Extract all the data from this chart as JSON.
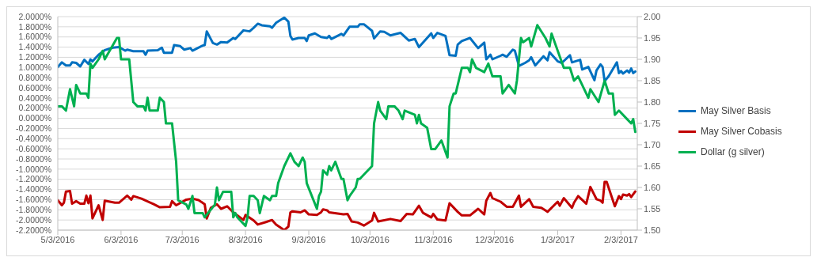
{
  "chart_data": {
    "type": "line",
    "grid": "y",
    "legend": "right",
    "xlim": [
      "2016-05-03",
      "2017-02-11"
    ],
    "xticks": [
      {
        "value": "2016-05-03",
        "label": "5/3/2016"
      },
      {
        "value": "2016-06-03",
        "label": "6/3/2016"
      },
      {
        "value": "2016-07-03",
        "label": "7/3/2016"
      },
      {
        "value": "2016-08-03",
        "label": "8/3/2016"
      },
      {
        "value": "2016-09-03",
        "label": "9/3/2016"
      },
      {
        "value": "2016-10-03",
        "label": "10/3/2016"
      },
      {
        "value": "2016-11-03",
        "label": "11/3/2016"
      },
      {
        "value": "2016-12-03",
        "label": "12/3/2016"
      },
      {
        "value": "2017-01-03",
        "label": "1/3/2017"
      },
      {
        "value": "2017-02-03",
        "label": "2/3/2017"
      }
    ],
    "ylim": [
      -2.2,
      2.0
    ],
    "yticks": [
      {
        "value": 2.0,
        "label": "2.0000%"
      },
      {
        "value": 1.8,
        "label": "1.8000%"
      },
      {
        "value": 1.6,
        "label": "1.6000%"
      },
      {
        "value": 1.4,
        "label": "1.4000%"
      },
      {
        "value": 1.2,
        "label": "1.2000%"
      },
      {
        "value": 1.0,
        "label": "1.0000%"
      },
      {
        "value": 0.8,
        "label": "0.8000%"
      },
      {
        "value": 0.6,
        "label": "0.6000%"
      },
      {
        "value": 0.4,
        "label": "0.4000%"
      },
      {
        "value": 0.2,
        "label": "0.2000%"
      },
      {
        "value": 0,
        "label": "0.0000%"
      },
      {
        "value": -0.2,
        "label": "-0.2000%"
      },
      {
        "value": -0.4,
        "label": "-0.4000%"
      },
      {
        "value": -0.6,
        "label": "-0.6000%"
      },
      {
        "value": -0.8,
        "label": "-0.8000%"
      },
      {
        "value": -1.0,
        "label": "-1.0000%"
      },
      {
        "value": -1.2,
        "label": "-1.2000%"
      },
      {
        "value": -1.4,
        "label": "-1.4000%"
      },
      {
        "value": -1.6,
        "label": "-1.6000%"
      },
      {
        "value": -1.8,
        "label": "-1.8000%"
      },
      {
        "value": -2.0,
        "label": "-2.0000%"
      },
      {
        "value": -2.2,
        "label": "-2.2000%"
      }
    ],
    "y2lim": [
      1.5,
      2.0
    ],
    "y2ticks": [
      {
        "value": 1.5,
        "label": "1.50"
      },
      {
        "value": 1.55,
        "label": "1.55"
      },
      {
        "value": 1.6,
        "label": "1.60"
      },
      {
        "value": 1.65,
        "label": "1.65"
      },
      {
        "value": 1.7,
        "label": "1.70"
      },
      {
        "value": 1.75,
        "label": "1.75"
      },
      {
        "value": 1.8,
        "label": "1.80"
      },
      {
        "value": 1.85,
        "label": "1.85"
      },
      {
        "value": 1.9,
        "label": "1.90"
      },
      {
        "value": 1.95,
        "label": "1.95"
      },
      {
        "value": 2.0,
        "label": "2.00"
      }
    ],
    "series": [
      {
        "name": "May Silver Basis",
        "color": "#0070c0",
        "x": [
          "2016-05-03",
          "2016-05-05",
          "2016-05-07",
          "2016-05-09",
          "2016-05-10",
          "2016-05-12",
          "2016-05-14",
          "2016-05-16",
          "2016-05-18",
          "2016-05-19",
          "2016-05-20",
          "2016-05-23",
          "2016-05-26",
          "2016-05-30",
          "2016-06-02",
          "2016-06-05",
          "2016-06-06",
          "2016-06-09",
          "2016-06-14",
          "2016-06-15",
          "2016-06-16",
          "2016-06-21",
          "2016-06-23",
          "2016-06-24",
          "2016-06-28",
          "2016-06-29",
          "2016-07-02",
          "2016-07-04",
          "2016-07-07",
          "2016-07-08",
          "2016-07-13",
          "2016-07-14",
          "2016-07-15",
          "2016-07-18",
          "2016-07-20",
          "2016-07-22",
          "2016-07-25",
          "2016-07-28",
          "2016-07-29",
          "2016-08-02",
          "2016-08-05",
          "2016-08-07",
          "2016-08-09",
          "2016-08-11",
          "2016-08-15",
          "2016-08-16",
          "2016-08-18",
          "2016-08-22",
          "2016-08-24",
          "2016-08-25",
          "2016-08-26",
          "2016-08-29",
          "2016-09-01",
          "2016-09-02",
          "2016-09-03",
          "2016-09-06",
          "2016-09-09",
          "2016-09-12",
          "2016-09-13",
          "2016-09-14",
          "2016-09-19",
          "2016-09-20",
          "2016-09-23",
          "2016-09-27",
          "2016-09-28",
          "2016-09-30",
          "2016-10-04",
          "2016-10-05",
          "2016-10-08",
          "2016-10-10",
          "2016-10-13",
          "2016-10-18",
          "2016-10-22",
          "2016-10-25",
          "2016-10-27",
          "2016-10-31",
          "2016-11-02",
          "2016-11-03",
          "2016-11-05",
          "2016-11-09",
          "2016-11-11",
          "2016-11-14",
          "2016-11-15",
          "2016-11-17",
          "2016-11-21",
          "2016-11-25",
          "2016-11-28",
          "2016-11-29",
          "2016-12-01",
          "2016-12-02",
          "2016-12-06",
          "2016-12-07",
          "2016-12-09",
          "2016-12-12",
          "2016-12-13",
          "2016-12-15",
          "2016-12-18",
          "2016-12-20",
          "2016-12-21",
          "2016-12-23",
          "2016-12-27",
          "2016-12-29",
          "2016-12-30",
          "2017-01-03",
          "2017-01-05",
          "2017-01-09",
          "2017-01-10",
          "2017-01-14",
          "2017-01-15",
          "2017-01-18",
          "2017-01-21",
          "2017-01-22",
          "2017-01-24",
          "2017-01-25",
          "2017-01-26",
          "2017-01-28",
          "2017-02-01",
          "2017-02-02",
          "2017-02-03",
          "2017-02-04",
          "2017-02-06",
          "2017-02-07",
          "2017-02-08",
          "2017-02-09",
          "2017-02-10"
        ],
        "values": [
          1.01,
          1.1,
          1.04,
          1.04,
          1.1,
          1.09,
          1.02,
          1.15,
          1.07,
          1.16,
          1.12,
          1.25,
          1.34,
          1.39,
          1.4,
          1.33,
          1.35,
          1.32,
          1.32,
          1.25,
          1.33,
          1.34,
          1.39,
          1.29,
          1.29,
          1.44,
          1.42,
          1.35,
          1.38,
          1.33,
          1.43,
          1.44,
          1.71,
          1.48,
          1.45,
          1.5,
          1.49,
          1.58,
          1.56,
          1.73,
          1.71,
          1.78,
          1.86,
          1.83,
          1.81,
          1.78,
          1.88,
          1.98,
          1.9,
          1.62,
          1.55,
          1.58,
          1.58,
          1.52,
          1.63,
          1.67,
          1.6,
          1.58,
          1.62,
          1.56,
          1.66,
          1.63,
          1.8,
          1.8,
          1.85,
          1.85,
          1.72,
          1.57,
          1.71,
          1.7,
          1.63,
          1.68,
          1.53,
          1.56,
          1.4,
          1.58,
          1.67,
          1.58,
          1.68,
          1.62,
          1.24,
          1.23,
          1.45,
          1.52,
          1.58,
          1.38,
          1.49,
          1.16,
          1.25,
          1.16,
          1.23,
          1.25,
          1.21,
          1.35,
          1.33,
          1.03,
          1.09,
          1.14,
          1.2,
          1.04,
          1.22,
          1.14,
          1.3,
          1.12,
          1.09,
          1.24,
          1.1,
          1.15,
          0.96,
          1.01,
          0.75,
          0.94,
          1.06,
          1.01,
          0.73,
          0.83,
          1.1,
          0.89,
          0.93,
          0.88,
          0.94,
          0.9,
          0.98,
          0.89,
          0.92
        ]
      },
      {
        "name": "May Silver Cobasis",
        "color": "#c00000",
        "x": [
          "2016-05-03",
          "2016-05-05",
          "2016-05-06",
          "2016-05-07",
          "2016-05-09",
          "2016-05-10",
          "2016-05-12",
          "2016-05-14",
          "2016-05-16",
          "2016-05-17",
          "2016-05-18",
          "2016-05-19",
          "2016-05-20",
          "2016-05-23",
          "2016-05-25",
          "2016-05-26",
          "2016-05-31",
          "2016-06-02",
          "2016-06-06",
          "2016-06-08",
          "2016-06-09",
          "2016-06-13",
          "2016-06-19",
          "2016-06-22",
          "2016-06-27",
          "2016-06-28",
          "2016-06-30",
          "2016-07-05",
          "2016-07-08",
          "2016-07-11",
          "2016-07-14",
          "2016-07-15",
          "2016-07-17",
          "2016-07-20",
          "2016-07-22",
          "2016-07-25",
          "2016-07-28",
          "2016-08-02",
          "2016-08-03",
          "2016-08-07",
          "2016-08-09",
          "2016-08-13",
          "2016-08-16",
          "2016-08-18",
          "2016-08-22",
          "2016-08-24",
          "2016-08-25",
          "2016-08-26",
          "2016-08-30",
          "2016-09-01",
          "2016-09-03",
          "2016-09-07",
          "2016-09-09",
          "2016-09-10",
          "2016-09-12",
          "2016-09-13",
          "2016-09-20",
          "2016-09-22",
          "2016-09-24",
          "2016-09-27",
          "2016-09-30",
          "2016-10-04",
          "2016-10-05",
          "2016-10-07",
          "2016-10-13",
          "2016-10-18",
          "2016-10-21",
          "2016-10-24",
          "2016-10-27",
          "2016-10-29",
          "2016-11-02",
          "2016-11-03",
          "2016-11-05",
          "2016-11-09",
          "2016-11-11",
          "2016-11-15",
          "2016-11-17",
          "2016-11-21",
          "2016-11-25",
          "2016-11-28",
          "2016-11-29",
          "2016-12-01",
          "2016-12-02",
          "2016-12-06",
          "2016-12-09",
          "2016-12-12",
          "2016-12-15",
          "2016-12-16",
          "2016-12-20",
          "2016-12-22",
          "2016-12-26",
          "2016-12-29",
          "2017-01-03",
          "2017-01-04",
          "2017-01-06",
          "2017-01-10",
          "2017-01-11",
          "2017-01-13",
          "2017-01-17",
          "2017-01-19",
          "2017-01-22",
          "2017-01-24",
          "2017-01-25",
          "2017-01-26",
          "2017-01-27",
          "2017-01-31",
          "2017-02-02",
          "2017-02-03",
          "2017-02-04",
          "2017-02-06",
          "2017-02-07",
          "2017-02-08",
          "2017-02-10"
        ],
        "values": [
          -1.61,
          -1.71,
          -1.66,
          -1.44,
          -1.43,
          -1.68,
          -1.63,
          -1.68,
          -1.68,
          -1.52,
          -1.67,
          -1.52,
          -1.97,
          -1.71,
          -2.0,
          -1.62,
          -1.66,
          -1.66,
          -1.52,
          -1.6,
          -1.53,
          -1.58,
          -1.69,
          -1.75,
          -1.74,
          -1.63,
          -1.71,
          -1.6,
          -1.58,
          -1.61,
          -1.69,
          -1.97,
          -1.76,
          -1.69,
          -1.78,
          -1.73,
          -1.85,
          -2.0,
          -1.9,
          -2.01,
          -2.09,
          -2.04,
          -2.0,
          -2.09,
          -2.2,
          -2.13,
          -1.85,
          -1.83,
          -1.85,
          -1.81,
          -1.89,
          -1.9,
          -1.85,
          -1.79,
          -1.81,
          -1.85,
          -1.89,
          -1.88,
          -2.03,
          -2.05,
          -2.11,
          -2.01,
          -1.86,
          -2.03,
          -1.98,
          -2.02,
          -1.88,
          -1.89,
          -1.72,
          -1.86,
          -1.95,
          -1.88,
          -1.99,
          -2.01,
          -1.67,
          -1.84,
          -1.91,
          -1.91,
          -1.78,
          -1.89,
          -1.62,
          -1.47,
          -1.57,
          -1.64,
          -1.74,
          -1.74,
          -1.52,
          -1.74,
          -1.59,
          -1.74,
          -1.76,
          -1.84,
          -1.64,
          -1.72,
          -1.57,
          -1.76,
          -1.66,
          -1.53,
          -1.68,
          -1.35,
          -1.59,
          -1.62,
          -1.66,
          -1.25,
          -1.25,
          -1.73,
          -1.53,
          -1.59,
          -1.5,
          -1.52,
          -1.49,
          -1.55,
          -1.44
        ]
      },
      {
        "name": "Dollar (g silver)",
        "color": "#00b050",
        "axis": "y2",
        "x": [
          "2016-05-03",
          "2016-05-05",
          "2016-05-07",
          "2016-05-09",
          "2016-05-11",
          "2016-05-12",
          "2016-05-14",
          "2016-05-17",
          "2016-05-18",
          "2016-05-19",
          "2016-05-20",
          "2016-05-23",
          "2016-05-25",
          "2016-05-26",
          "2016-06-01",
          "2016-06-02",
          "2016-06-03",
          "2016-06-06",
          "2016-06-07",
          "2016-06-09",
          "2016-06-11",
          "2016-06-14",
          "2016-06-15",
          "2016-06-16",
          "2016-06-17",
          "2016-06-21",
          "2016-06-22",
          "2016-06-24",
          "2016-06-25",
          "2016-06-28",
          "2016-06-30",
          "2016-07-01",
          "2016-07-05",
          "2016-07-06",
          "2016-07-08",
          "2016-07-09",
          "2016-07-12",
          "2016-07-13",
          "2016-07-14",
          "2016-07-19",
          "2016-07-20",
          "2016-07-21",
          "2016-07-23",
          "2016-07-25",
          "2016-07-27",
          "2016-07-28",
          "2016-07-29",
          "2016-07-30",
          "2016-08-01",
          "2016-08-03",
          "2016-08-04",
          "2016-08-05",
          "2016-08-07",
          "2016-08-09",
          "2016-08-10",
          "2016-08-12",
          "2016-08-15",
          "2016-08-16",
          "2016-08-18",
          "2016-08-19",
          "2016-08-22",
          "2016-08-25",
          "2016-08-27",
          "2016-08-29",
          "2016-08-31",
          "2016-09-01",
          "2016-09-02",
          "2016-09-07",
          "2016-09-08",
          "2016-09-09",
          "2016-09-10",
          "2016-09-12",
          "2016-09-13",
          "2016-09-14",
          "2016-09-16",
          "2016-09-19",
          "2016-09-20",
          "2016-09-22",
          "2016-09-23",
          "2016-09-26",
          "2016-09-27",
          "2016-09-28",
          "2016-09-30",
          "2016-10-04",
          "2016-10-05",
          "2016-10-07",
          "2016-10-08",
          "2016-10-11",
          "2016-10-12",
          "2016-10-15",
          "2016-10-17",
          "2016-10-19",
          "2016-10-20",
          "2016-10-25",
          "2016-10-26",
          "2016-10-27",
          "2016-10-28",
          "2016-10-31",
          "2016-11-02",
          "2016-11-04",
          "2016-11-07",
          "2016-11-10",
          "2016-11-11",
          "2016-11-13",
          "2016-11-14",
          "2016-11-17",
          "2016-11-20",
          "2016-11-21",
          "2016-11-22",
          "2016-11-24",
          "2016-11-28",
          "2016-11-30",
          "2016-12-02",
          "2016-12-06",
          "2016-12-07",
          "2016-12-10",
          "2016-12-13",
          "2016-12-14",
          "2016-12-16",
          "2016-12-17",
          "2016-12-20",
          "2016-12-21",
          "2016-12-24",
          "2016-12-28",
          "2016-12-30",
          "2016-12-31",
          "2017-01-03",
          "2017-01-06",
          "2017-01-09",
          "2017-01-11",
          "2017-01-13",
          "2017-01-18",
          "2017-01-19",
          "2017-01-23",
          "2017-01-26",
          "2017-01-28",
          "2017-01-30",
          "2017-01-31",
          "2017-02-02",
          "2017-02-06",
          "2017-02-08",
          "2017-02-09",
          "2017-02-10"
        ],
        "values": [
          1.79,
          1.79,
          1.78,
          1.83,
          1.79,
          1.84,
          1.82,
          1.82,
          1.81,
          1.89,
          1.88,
          1.9,
          1.92,
          1.9,
          1.95,
          1.95,
          1.9,
          1.9,
          1.9,
          1.8,
          1.79,
          1.79,
          1.78,
          1.81,
          1.78,
          1.78,
          1.81,
          1.8,
          1.75,
          1.75,
          1.66,
          1.57,
          1.56,
          1.55,
          1.58,
          1.54,
          1.54,
          1.54,
          1.53,
          1.56,
          1.6,
          1.57,
          1.59,
          1.59,
          1.59,
          1.53,
          1.54,
          1.53,
          1.52,
          1.51,
          1.53,
          1.58,
          1.58,
          1.57,
          1.54,
          1.58,
          1.57,
          1.58,
          1.58,
          1.61,
          1.65,
          1.68,
          1.66,
          1.65,
          1.67,
          1.66,
          1.61,
          1.55,
          1.58,
          1.59,
          1.64,
          1.63,
          1.65,
          1.64,
          1.66,
          1.62,
          1.62,
          1.57,
          1.58,
          1.6,
          1.62,
          1.62,
          1.63,
          1.65,
          1.75,
          1.8,
          1.78,
          1.76,
          1.79,
          1.79,
          1.78,
          1.76,
          1.78,
          1.77,
          1.75,
          1.77,
          1.75,
          1.74,
          1.69,
          1.69,
          1.71,
          1.67,
          1.79,
          1.82,
          1.82,
          1.88,
          1.88,
          1.87,
          1.9,
          1.88,
          1.87,
          1.89,
          1.86,
          1.86,
          1.82,
          1.84,
          1.82,
          1.85,
          1.95,
          1.94,
          1.95,
          1.93,
          1.98,
          1.95,
          1.93,
          1.96,
          1.92,
          1.88,
          1.88,
          1.85,
          1.86,
          1.81,
          1.83,
          1.8,
          1.85,
          1.82,
          1.82,
          1.77,
          1.78,
          1.76,
          1.75,
          1.76,
          1.73
        ]
      }
    ]
  }
}
